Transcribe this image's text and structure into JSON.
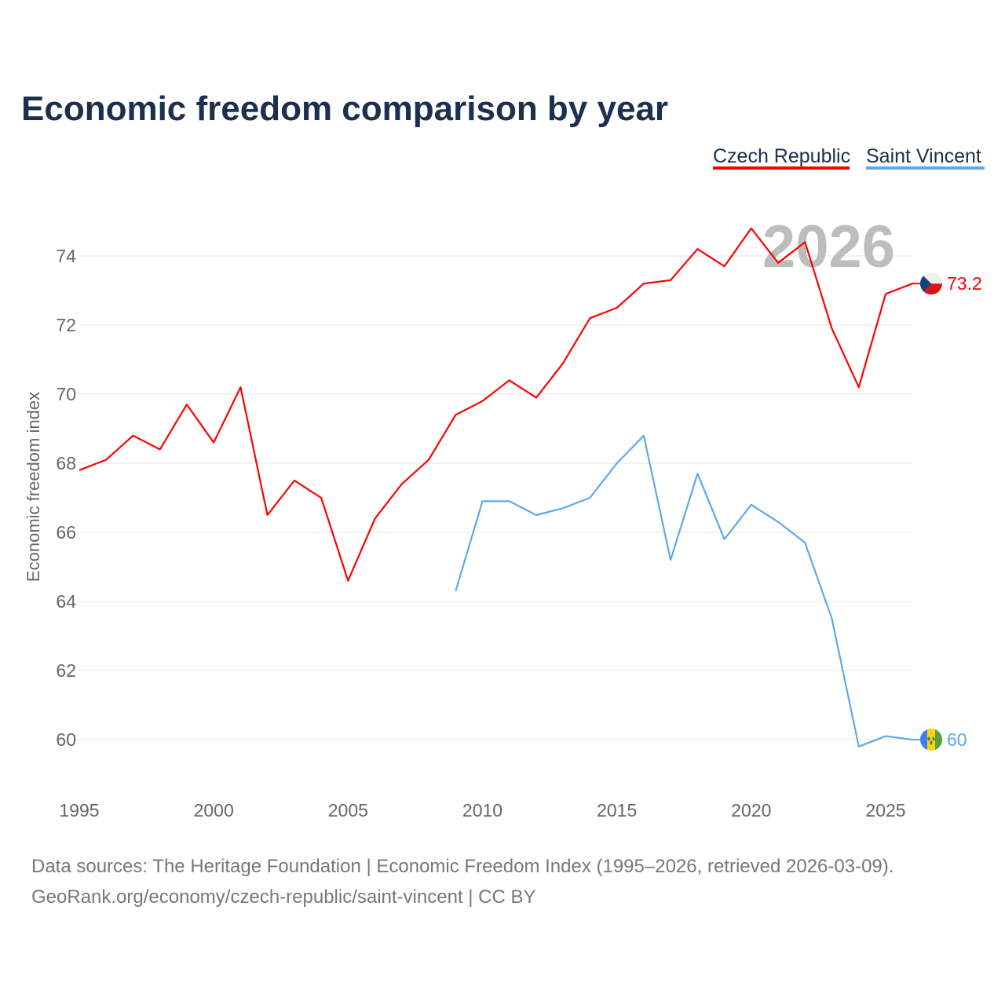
{
  "chart_data": {
    "type": "line",
    "title": "Economic freedom comparison by year",
    "ylabel": "Economic freedom index",
    "xlabel": "",
    "xlim": [
      1995,
      2026
    ],
    "ylim": [
      59,
      75.5
    ],
    "x_ticks": [
      1995,
      2000,
      2005,
      2010,
      2015,
      2020,
      2025
    ],
    "y_ticks": [
      60,
      62,
      64,
      66,
      68,
      70,
      72,
      74
    ],
    "grid": true,
    "legend_position": "top-right",
    "year_watermark": "2026",
    "series": [
      {
        "name": "Czech Republic",
        "color": "#ff0000",
        "end_label": "73.2",
        "x": [
          1995,
          1996,
          1997,
          1998,
          1999,
          2000,
          2001,
          2002,
          2003,
          2004,
          2005,
          2006,
          2007,
          2008,
          2009,
          2010,
          2011,
          2012,
          2013,
          2014,
          2015,
          2016,
          2017,
          2018,
          2019,
          2020,
          2021,
          2022,
          2023,
          2024,
          2025,
          2026
        ],
        "values": [
          67.8,
          68.1,
          68.8,
          68.4,
          69.7,
          68.6,
          70.2,
          66.5,
          67.5,
          67.0,
          64.6,
          66.4,
          67.4,
          68.1,
          69.4,
          69.8,
          70.4,
          69.9,
          70.9,
          72.2,
          72.5,
          73.2,
          73.3,
          74.2,
          73.7,
          74.8,
          73.8,
          74.4,
          71.9,
          70.2,
          72.9,
          73.2
        ]
      },
      {
        "name": "Saint Vincent",
        "color": "#5fa8ea",
        "end_label": "60",
        "x": [
          2009,
          2010,
          2011,
          2012,
          2013,
          2014,
          2015,
          2016,
          2017,
          2018,
          2019,
          2020,
          2021,
          2022,
          2023,
          2024,
          2025,
          2026
        ],
        "values": [
          64.3,
          66.9,
          66.9,
          66.5,
          66.7,
          67.0,
          68.0,
          68.8,
          65.2,
          67.7,
          65.8,
          66.8,
          66.3,
          65.7,
          63.5,
          59.8,
          60.1,
          60.0
        ]
      }
    ]
  },
  "footer": {
    "line1": "Data sources: The Heritage Foundation | Economic Freedom Index (1995–2026, retrieved 2026-03-09).",
    "line2": "GeoRank.org/economy/czech-republic/saint-vincent | CC BY"
  }
}
